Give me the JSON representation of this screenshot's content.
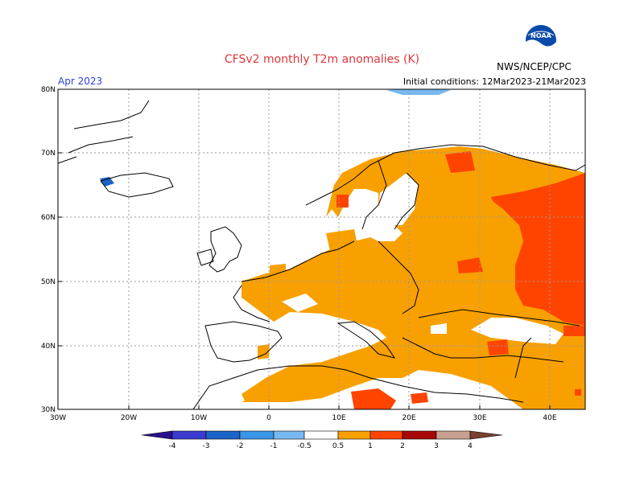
{
  "header": {
    "title": "CFSv2 monthly T2m anomalies (K)",
    "month": "Apr 2023",
    "initial_conditions": "Initial conditions: 12Mar2023-21Mar2023",
    "agency": "NWS/NCEP/CPC",
    "logo_text": "NOAA"
  },
  "map": {
    "lat_labels": [
      "80N",
      "70N",
      "60N",
      "50N",
      "40N",
      "30N"
    ],
    "lon_labels": [
      "30W",
      "20W",
      "10W",
      "0",
      "10E",
      "20E",
      "30E",
      "40E"
    ]
  },
  "colorbar": {
    "ticks": [
      "-4",
      "-3",
      "-2",
      "-1",
      "-0.5",
      "0.5",
      "1",
      "2",
      "3",
      "4"
    ],
    "colors": {
      "lt_m4": "#2a0f8f",
      "m4_m3": "#3c3bd0",
      "m3_m2": "#1c64c8",
      "m2_m1": "#3c96e8",
      "m1_m05": "#78b8f0",
      "neutral": "#ffffff",
      "p05_p1": "#f8a000",
      "p1_p2": "#ff4400",
      "p2_p3": "#a80808",
      "p3_p4": "#c8a090",
      "gt_p4": "#7a4030"
    }
  }
}
